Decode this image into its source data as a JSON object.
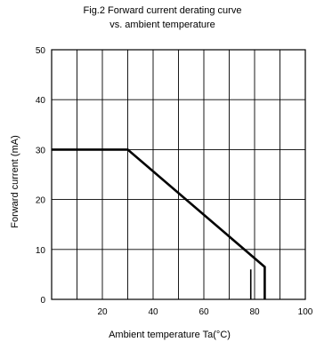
{
  "chart_data": {
    "type": "line",
    "title_line_1": "Fig.2 Forward current derating curve",
    "title_line_2": "vs. ambient temperature",
    "xlabel": "Ambient temperature Ta(°C)",
    "ylabel": "Forward current (mA)",
    "xlim": [
      0,
      100
    ],
    "ylim": [
      0,
      50
    ],
    "x_ticks": [
      20,
      40,
      60,
      80,
      100
    ],
    "y_ticks": [
      0,
      10,
      20,
      30,
      40,
      50
    ],
    "grid": true,
    "series": [
      {
        "x": [
          0,
          30,
          84,
          84
        ],
        "y": [
          30,
          30,
          6.5,
          0
        ]
      }
    ],
    "markers": [
      {
        "x": 78.5,
        "y_from": 0,
        "y_to": 6
      }
    ]
  }
}
